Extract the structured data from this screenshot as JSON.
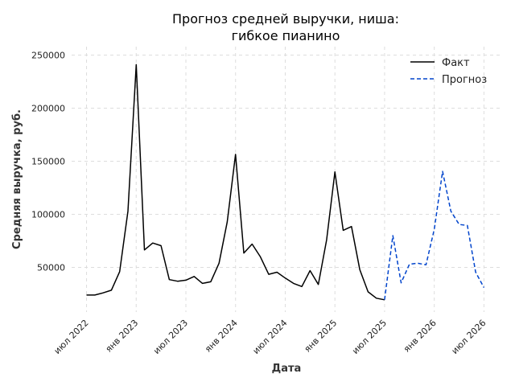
{
  "chart_data": {
    "type": "line",
    "title_lines": [
      "Прогноз средней выручки, ниша:",
      "гибкое пианино"
    ],
    "xlabel": "Дата",
    "ylabel": "Средняя выручка, руб.",
    "x_ticks": [
      {
        "label": "июл 2022",
        "month_index": 0
      },
      {
        "label": "янв 2023",
        "month_index": 6
      },
      {
        "label": "июл 2023",
        "month_index": 12
      },
      {
        "label": "янв 2024",
        "month_index": 18
      },
      {
        "label": "июл 2024",
        "month_index": 24
      },
      {
        "label": "янв 2025",
        "month_index": 30
      },
      {
        "label": "июл 2025",
        "month_index": 36
      },
      {
        "label": "янв 2026",
        "month_index": 42
      },
      {
        "label": "июл 2026",
        "month_index": 48
      }
    ],
    "y_ticks": [
      50000,
      100000,
      150000,
      200000,
      250000
    ],
    "xlim": [
      -1.8,
      50
    ],
    "ylim": [
      8000,
      258000
    ],
    "grid": true,
    "legend_position": "top-right",
    "series": [
      {
        "name": "Факт",
        "color": "#000000",
        "dash": "solid",
        "start_month_index": 0,
        "values": [
          24000,
          24000,
          26000,
          28500,
          46000,
          103000,
          241000,
          66500,
          73000,
          70500,
          38500,
          37000,
          38000,
          41500,
          35000,
          36500,
          54000,
          93000,
          156500,
          63500,
          72000,
          60000,
          43500,
          45500,
          40000,
          35000,
          32000,
          47000,
          34000,
          76000,
          140000,
          85000,
          88500,
          48000,
          27000,
          21000,
          19500
        ]
      },
      {
        "name": "Прогноз",
        "color": "#0044cc",
        "dash": "dashed",
        "start_month_index": 36,
        "values": [
          19500,
          80000,
          35500,
          53000,
          54000,
          52500,
          86000,
          140500,
          103000,
          90500,
          89500,
          45500,
          31000
        ]
      }
    ]
  }
}
